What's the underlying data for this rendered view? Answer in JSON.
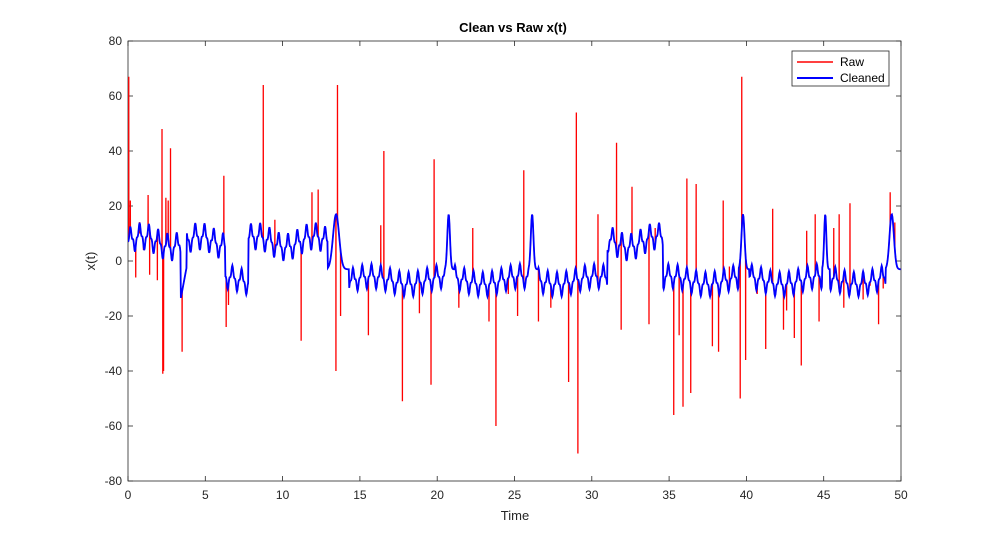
{
  "chart_data": {
    "type": "line",
    "title": "Clean vs Raw x(t)",
    "xlabel": "Time",
    "ylabel": "x(t)",
    "xlim": [
      0,
      50
    ],
    "ylim": [
      -80,
      80
    ],
    "xticks": [
      "0",
      "5",
      "10",
      "15",
      "20",
      "25",
      "30",
      "35",
      "40",
      "45",
      "50"
    ],
    "yticks": [
      "80",
      "60",
      "40",
      "20",
      "0",
      "-20",
      "-40",
      "-60",
      "-80"
    ],
    "grid": false,
    "legend_position": "top-right",
    "series": [
      {
        "name": "Raw",
        "color": "#ff0000",
        "spikes": [
          [
            0.05,
            67
          ],
          [
            0.15,
            22
          ],
          [
            0.35,
            8
          ],
          [
            0.5,
            -6
          ],
          [
            0.75,
            10
          ],
          [
            1.0,
            4
          ],
          [
            1.3,
            24
          ],
          [
            1.4,
            -5
          ],
          [
            1.9,
            -7
          ],
          [
            2.2,
            48
          ],
          [
            2.25,
            -41
          ],
          [
            2.3,
            -40
          ],
          [
            2.45,
            23
          ],
          [
            2.6,
            22
          ],
          [
            2.75,
            41
          ],
          [
            3.5,
            -33
          ],
          [
            6.2,
            31
          ],
          [
            6.35,
            -24
          ],
          [
            6.5,
            -16
          ],
          [
            8.75,
            64
          ],
          [
            9.5,
            15
          ],
          [
            11.2,
            -29
          ],
          [
            11.9,
            25
          ],
          [
            12.3,
            26
          ],
          [
            13.45,
            -40
          ],
          [
            13.55,
            64
          ],
          [
            13.75,
            -20
          ],
          [
            15.55,
            -27
          ],
          [
            16.35,
            13
          ],
          [
            16.55,
            40
          ],
          [
            17.75,
            -51
          ],
          [
            18.85,
            -19
          ],
          [
            19.6,
            -45
          ],
          [
            19.8,
            37
          ],
          [
            21.4,
            -17
          ],
          [
            22.3,
            12
          ],
          [
            23.35,
            -22
          ],
          [
            23.8,
            -60
          ],
          [
            24.6,
            -12
          ],
          [
            25.2,
            -20
          ],
          [
            25.6,
            33
          ],
          [
            26.55,
            -22
          ],
          [
            27.35,
            -17
          ],
          [
            28.5,
            -44
          ],
          [
            29.0,
            54
          ],
          [
            29.1,
            -70
          ],
          [
            30.4,
            17
          ],
          [
            31.6,
            43
          ],
          [
            31.9,
            -25
          ],
          [
            32.6,
            27
          ],
          [
            33.7,
            -23
          ],
          [
            34.1,
            12
          ],
          [
            35.3,
            -56
          ],
          [
            35.65,
            -27
          ],
          [
            35.9,
            -53
          ],
          [
            36.15,
            30
          ],
          [
            36.4,
            -48
          ],
          [
            36.75,
            28
          ],
          [
            37.8,
            -31
          ],
          [
            38.2,
            -33
          ],
          [
            38.5,
            22
          ],
          [
            38.9,
            -2
          ],
          [
            39.6,
            -50
          ],
          [
            39.7,
            67
          ],
          [
            39.95,
            -36
          ],
          [
            40.7,
            -12
          ],
          [
            41.25,
            -32
          ],
          [
            41.7,
            19
          ],
          [
            42.4,
            -25
          ],
          [
            42.6,
            -18
          ],
          [
            43.1,
            -28
          ],
          [
            43.55,
            -38
          ],
          [
            43.9,
            11
          ],
          [
            44.45,
            17
          ],
          [
            44.7,
            -22
          ],
          [
            45.65,
            12
          ],
          [
            46.0,
            17
          ],
          [
            46.3,
            -17
          ],
          [
            46.7,
            21
          ],
          [
            47.55,
            -14
          ],
          [
            48.0,
            -9
          ],
          [
            48.55,
            -23
          ],
          [
            48.85,
            -10
          ],
          [
            49.3,
            25
          ],
          [
            49.6,
            14
          ]
        ]
      },
      {
        "name": "Cleaned",
        "color": "#0000ff",
        "segments": [
          {
            "from": 0.0,
            "to": 3.4,
            "regime": "positive"
          },
          {
            "from": 3.4,
            "to": 3.8,
            "regime": "transition-low"
          },
          {
            "from": 3.8,
            "to": 6.3,
            "regime": "positive"
          },
          {
            "from": 6.3,
            "to": 7.8,
            "regime": "negative"
          },
          {
            "from": 7.8,
            "to": 12.9,
            "regime": "positive"
          },
          {
            "from": 12.9,
            "to": 14.3,
            "regime": "transition-high"
          },
          {
            "from": 14.3,
            "to": 20.5,
            "regime": "negative"
          },
          {
            "from": 20.5,
            "to": 21.1,
            "regime": "transition-high"
          },
          {
            "from": 21.1,
            "to": 25.9,
            "regime": "negative"
          },
          {
            "from": 25.9,
            "to": 26.5,
            "regime": "transition-high"
          },
          {
            "from": 26.5,
            "to": 31.0,
            "regime": "negative"
          },
          {
            "from": 31.0,
            "to": 34.6,
            "regime": "positive"
          },
          {
            "from": 34.6,
            "to": 39.5,
            "regime": "negative"
          },
          {
            "from": 39.5,
            "to": 40.2,
            "regime": "transition-high"
          },
          {
            "from": 40.2,
            "to": 44.9,
            "regime": "negative"
          },
          {
            "from": 44.9,
            "to": 45.4,
            "regime": "transition-high"
          },
          {
            "from": 45.4,
            "to": 49.0,
            "regime": "negative"
          },
          {
            "from": 49.0,
            "to": 50.0,
            "regime": "transition-high"
          }
        ],
        "range": [
          -17,
          18
        ]
      }
    ]
  }
}
